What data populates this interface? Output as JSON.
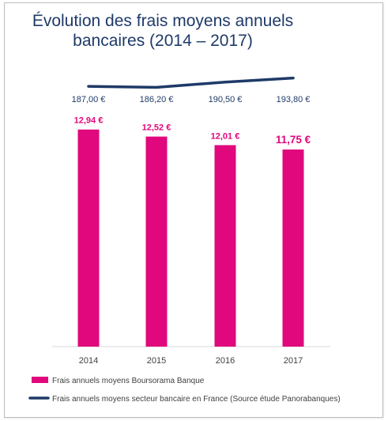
{
  "chart_data": {
    "type": "bar",
    "title_line1": "Évolution des frais moyens annuels",
    "title_line2": "bancaires (2014 – 2017)",
    "categories": [
      "2014",
      "2015",
      "2016",
      "2017"
    ],
    "series": [
      {
        "name": "Frais annuels moyens Boursorama Banque",
        "type": "bar",
        "color": "#e0087c",
        "values": [
          12.94,
          12.52,
          12.01,
          11.75
        ],
        "labels": [
          "12,94 €",
          "12,52 €",
          "12,01 €",
          "11,75 €"
        ]
      },
      {
        "name": "Frais annuels moyens secteur bancaire en France (Source étude Panorabanques)",
        "type": "line",
        "color": "#1f3a68",
        "values": [
          187.0,
          186.2,
          190.5,
          193.8
        ],
        "labels": [
          "187,00 €",
          "186,20 €",
          "190,50 €",
          "193,80 €"
        ]
      }
    ],
    "legend_position": "bottom",
    "grid": false
  }
}
